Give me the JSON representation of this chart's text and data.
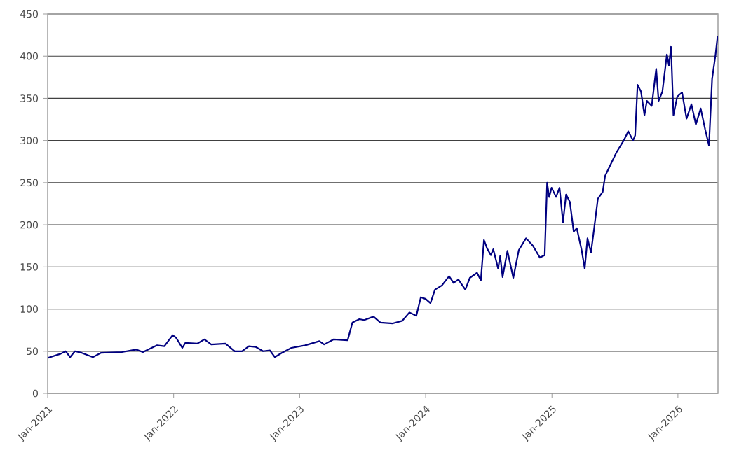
{
  "chart_data": {
    "type": "line",
    "x": [
      "2021-01-01",
      "2021-02-08",
      "2021-02-22",
      "2021-03-07",
      "2021-03-21",
      "2021-04-10",
      "2021-05-12",
      "2021-06-04",
      "2021-08-04",
      "2021-09-14",
      "2021-10-04",
      "2021-11-14",
      "2021-12-05",
      "2021-12-29",
      "2022-01-08",
      "2022-01-26",
      "2022-02-04",
      "2022-03-10",
      "2022-03-31",
      "2022-04-20",
      "2022-05-31",
      "2022-06-27",
      "2022-07-18",
      "2022-08-07",
      "2022-08-27",
      "2022-09-17",
      "2022-10-07",
      "2022-10-21",
      "2022-11-10",
      "2022-12-08",
      "2023-01-17",
      "2023-02-27",
      "2023-03-13",
      "2023-04-09",
      "2023-05-20",
      "2023-06-03",
      "2023-06-23",
      "2023-07-07",
      "2023-08-03",
      "2023-08-23",
      "2023-09-28",
      "2023-10-25",
      "2023-11-15",
      "2023-12-05",
      "2023-12-18",
      "2024-01-01",
      "2024-01-15",
      "2024-01-28",
      "2024-02-17",
      "2024-03-09",
      "2024-03-22",
      "2024-04-05",
      "2024-04-25",
      "2024-05-08",
      "2024-05-29",
      "2024-06-09",
      "2024-06-18",
      "2024-06-27",
      "2024-07-08",
      "2024-07-15",
      "2024-07-29",
      "2024-08-04",
      "2024-08-11",
      "2024-08-25",
      "2024-09-11",
      "2024-09-27",
      "2024-10-18",
      "2024-11-07",
      "2024-11-27",
      "2024-12-11",
      "2024-12-18",
      "2024-12-24",
      "2024-12-31",
      "2025-01-13",
      "2025-01-23",
      "2025-02-02",
      "2025-02-11",
      "2025-02-22",
      "2025-03-05",
      "2025-03-14",
      "2025-03-28",
      "2025-04-06",
      "2025-04-14",
      "2025-04-24",
      "2025-05-03",
      "2025-05-14",
      "2025-05-28",
      "2025-06-04",
      "2025-06-24",
      "2025-07-07",
      "2025-07-28",
      "2025-08-10",
      "2025-08-24",
      "2025-08-30",
      "2025-09-06",
      "2025-09-16",
      "2025-09-26",
      "2025-10-03",
      "2025-10-17",
      "2025-10-30",
      "2025-11-06",
      "2025-11-17",
      "2025-11-30",
      "2025-12-06",
      "2025-12-12",
      "2025-12-19",
      "2025-12-30",
      "2026-01-13",
      "2026-01-26",
      "2026-02-09",
      "2026-02-22",
      "2026-03-08",
      "2026-03-21",
      "2026-04-01",
      "2026-04-10",
      "2026-04-20",
      "2026-04-26"
    ],
    "values": [
      42,
      47,
      50,
      43,
      50,
      48,
      43,
      48,
      49,
      52,
      49,
      57,
      56,
      69,
      66,
      54,
      60,
      59,
      64,
      58,
      59,
      50,
      50,
      56,
      55,
      50,
      51,
      43,
      48,
      54,
      57,
      62,
      58,
      64,
      63,
      84,
      88,
      87,
      91,
      84,
      83,
      86,
      96,
      92,
      114,
      112,
      107,
      123,
      128,
      139,
      131,
      135,
      123,
      137,
      143,
      134,
      182,
      172,
      164,
      171,
      148,
      163,
      138,
      169,
      137,
      170,
      184,
      175,
      161,
      164,
      250,
      233,
      244,
      233,
      244,
      203,
      236,
      227,
      192,
      196,
      170,
      148,
      184,
      167,
      195,
      231,
      239,
      258,
      275,
      286,
      300,
      311,
      300,
      306,
      366,
      358,
      330,
      347,
      341,
      385,
      347,
      358,
      402,
      389,
      411,
      330,
      352,
      357,
      326,
      343,
      319,
      338,
      313,
      294,
      373,
      402,
      424
    ],
    "color": "#000080",
    "line_style": "solid",
    "xlim": [
      "2021-01-01",
      "2026-04-27"
    ],
    "xticks": [
      {
        "value": "2021-01-01",
        "label": "Jan-2021"
      },
      {
        "value": "2022-01-01",
        "label": "Jan-2022"
      },
      {
        "value": "2023-01-01",
        "label": "Jan-2023"
      },
      {
        "value": "2024-01-01",
        "label": "Jan-2024"
      },
      {
        "value": "2025-01-01",
        "label": "Jan-2025"
      },
      {
        "value": "2026-01-01",
        "label": "Jan-2026"
      }
    ],
    "ylim": [
      0,
      450
    ],
    "yticks": [
      0,
      50,
      100,
      150,
      200,
      250,
      300,
      350,
      400,
      450
    ],
    "grid": "y"
  }
}
